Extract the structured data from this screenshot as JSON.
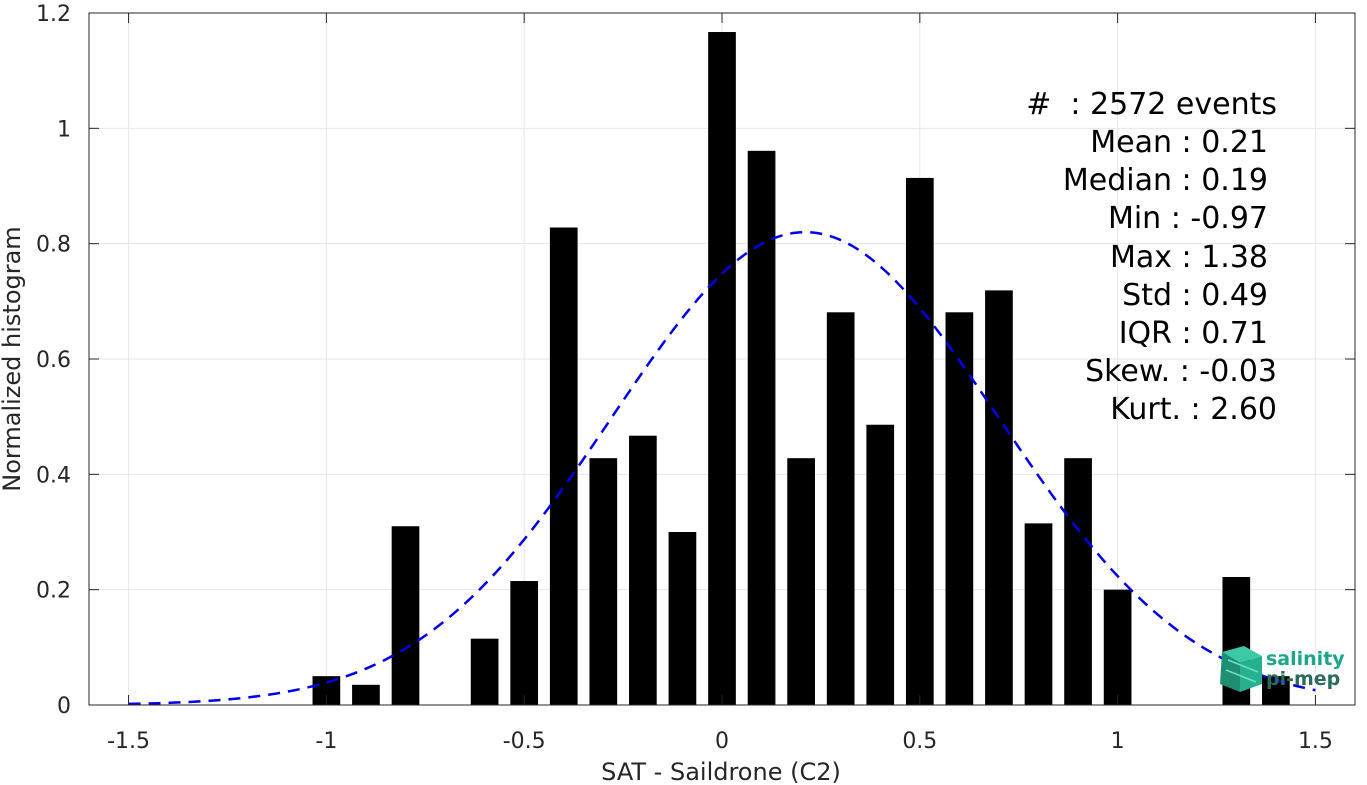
{
  "chart_data": {
    "type": "bar",
    "xlabel": "SAT - Saildrone (C2)",
    "ylabel": "Normalized histogram",
    "xlim": [
      -1.6,
      1.6
    ],
    "ylim": [
      0,
      1.2
    ],
    "xticks": [
      -1.5,
      -1,
      -0.5,
      0,
      0.5,
      1,
      1.5
    ],
    "xtick_labels": [
      "-1.5",
      "-1",
      "-0.5",
      "0",
      "0.5",
      "1",
      "1.5"
    ],
    "yticks": [
      0,
      0.2,
      0.4,
      0.6,
      0.8,
      1.0,
      1.2
    ],
    "ytick_labels": [
      "0",
      "0.2",
      "0.4",
      "0.6",
      "0.8",
      "1",
      "1.2"
    ],
    "grid": true,
    "bar_width": 0.07,
    "bars": [
      {
        "x": -1.0,
        "y": 0.05
      },
      {
        "x": -0.9,
        "y": 0.035
      },
      {
        "x": -0.8,
        "y": 0.31
      },
      {
        "x": -0.6,
        "y": 0.115
      },
      {
        "x": -0.5,
        "y": 0.215
      },
      {
        "x": -0.4,
        "y": 0.828
      },
      {
        "x": -0.3,
        "y": 0.428
      },
      {
        "x": -0.2,
        "y": 0.467
      },
      {
        "x": -0.1,
        "y": 0.3
      },
      {
        "x": 0.0,
        "y": 1.167
      },
      {
        "x": 0.1,
        "y": 0.961
      },
      {
        "x": 0.2,
        "y": 0.428
      },
      {
        "x": 0.3,
        "y": 0.681
      },
      {
        "x": 0.4,
        "y": 0.486
      },
      {
        "x": 0.5,
        "y": 0.914
      },
      {
        "x": 0.6,
        "y": 0.681
      },
      {
        "x": 0.7,
        "y": 0.719
      },
      {
        "x": 0.8,
        "y": 0.315
      },
      {
        "x": 0.9,
        "y": 0.428
      },
      {
        "x": 1.0,
        "y": 0.2
      },
      {
        "x": 1.3,
        "y": 0.222
      },
      {
        "x": 1.4,
        "y": 0.05
      }
    ],
    "fit_curve": {
      "style": "dashed",
      "color": "#0000e6",
      "mean": 0.21,
      "std": 0.49,
      "peak": 0.82,
      "x_range": [
        -1.5,
        1.5
      ]
    },
    "stats_lines": [
      "#  : 2572 events",
      "Mean : 0.21",
      "Median : 0.19",
      "Min : -0.97",
      "Max : 1.38",
      "Std : 0.49",
      "IQR : 0.71",
      "Skew. : -0.03",
      "Kurt. : 2.60"
    ]
  },
  "logo": {
    "line1": "salinity",
    "line2": "pi-mep",
    "color1": "#1aa58c",
    "color2": "#2a6b5f"
  },
  "colors": {
    "bar": "#000000",
    "axis": "#262626",
    "grid": "#e6e6e6"
  }
}
